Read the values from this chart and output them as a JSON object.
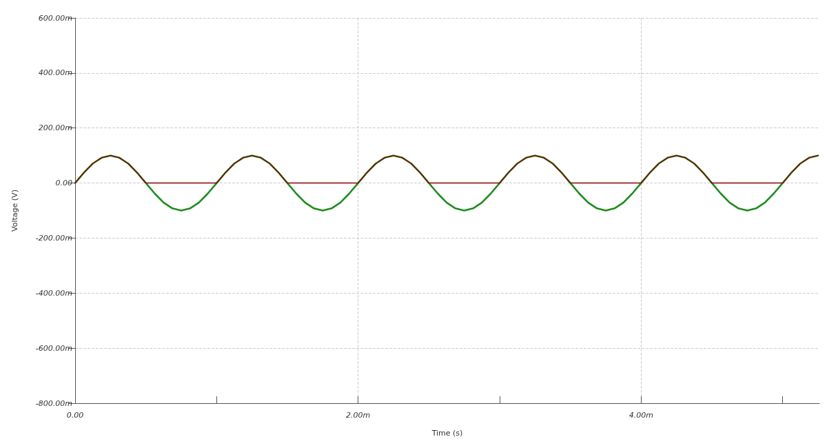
{
  "chart_data": {
    "type": "line",
    "xlabel": "Time (s)",
    "ylabel": "Voltage (V)",
    "x": [
      0,
      0.0625,
      0.125,
      0.1875,
      0.25,
      0.3125,
      0.375,
      0.4375,
      0.5,
      0.5625,
      0.625,
      0.6875,
      0.75,
      0.8125,
      0.875,
      0.9375,
      1,
      1.0625,
      1.125,
      1.1875,
      1.25,
      1.3125,
      1.375,
      1.4375,
      1.5,
      1.5625,
      1.625,
      1.6875,
      1.75,
      1.8125,
      1.875,
      1.9375,
      2,
      2.0625,
      2.125,
      2.1875,
      2.25,
      2.3125,
      2.375,
      2.4375,
      2.5,
      2.5625,
      2.625,
      2.6875,
      2.75,
      2.8125,
      2.875,
      2.9375,
      3,
      3.0625,
      3.125,
      3.1875,
      3.25,
      3.3125,
      3.375,
      3.4375,
      3.5,
      3.5625,
      3.625,
      3.6875,
      3.75,
      3.8125,
      3.875,
      3.9375,
      4,
      4.0625,
      4.125,
      4.1875,
      4.25,
      4.3125,
      4.375,
      4.4375,
      4.5,
      4.5625,
      4.625,
      4.6875,
      4.75,
      4.8125,
      4.875,
      4.9375,
      5,
      5.0625,
      5.125,
      5.1875,
      5.25
    ],
    "series": [
      {
        "color": "#1e8c1e",
        "values": [
          0,
          38,
          71,
          92,
          100,
          92,
          71,
          38,
          0,
          -38,
          -71,
          -92,
          -100,
          -92,
          -71,
          -38,
          0,
          38,
          71,
          92,
          100,
          92,
          71,
          38,
          0,
          -38,
          -71,
          -92,
          -100,
          -92,
          -71,
          -38,
          0,
          38,
          71,
          92,
          100,
          92,
          71,
          38,
          0,
          -38,
          -71,
          -92,
          -100,
          -92,
          -71,
          -38,
          0,
          38,
          71,
          92,
          100,
          92,
          71,
          38,
          0,
          -38,
          -71,
          -92,
          -100,
          -92,
          -71,
          -38,
          0,
          38,
          71,
          92,
          100,
          92,
          71,
          38,
          0,
          -38,
          -71,
          -92,
          -100,
          -92,
          -71,
          -38,
          0,
          38,
          71,
          92,
          100
        ]
      },
      {
        "color": "#8b0000",
        "values": [
          0,
          38,
          71,
          92,
          100,
          92,
          71,
          38,
          0,
          0,
          0,
          0,
          0,
          0,
          0,
          0,
          0,
          38,
          71,
          92,
          100,
          92,
          71,
          38,
          0,
          0,
          0,
          0,
          0,
          0,
          0,
          0,
          0,
          38,
          71,
          92,
          100,
          92,
          71,
          38,
          0,
          0,
          0,
          0,
          0,
          0,
          0,
          0,
          0,
          38,
          71,
          92,
          100,
          92,
          71,
          38,
          0,
          0,
          0,
          0,
          0,
          0,
          0,
          0,
          0,
          38,
          71,
          92,
          100,
          92,
          71,
          38,
          0,
          0,
          0,
          0,
          0,
          0,
          0,
          0,
          0,
          38,
          71,
          92,
          100
        ]
      }
    ],
    "xlim": [
      0,
      5.26
    ],
    "xticks": [
      {
        "value": 0,
        "label": "0.00"
      },
      {
        "value": 1,
        "label": null
      },
      {
        "value": 2,
        "label": "2.00m"
      },
      {
        "value": 3,
        "label": null
      },
      {
        "value": 4,
        "label": "4.00m"
      },
      {
        "value": 5,
        "label": null
      }
    ],
    "ylim": [
      -800,
      600
    ],
    "yticks": [
      {
        "value": -800,
        "label": "-800.00m"
      },
      {
        "value": -600,
        "label": "-600.00m"
      },
      {
        "value": -400,
        "label": "-400.00m"
      },
      {
        "value": -200,
        "label": "-200.00m"
      },
      {
        "value": 0,
        "label": "0.00"
      },
      {
        "value": 200,
        "label": "200.00m"
      },
      {
        "value": 400,
        "label": "400.00m"
      },
      {
        "value": 600,
        "label": "600.00m"
      }
    ],
    "grid": true,
    "marker": "none",
    "line_style": "solid"
  }
}
